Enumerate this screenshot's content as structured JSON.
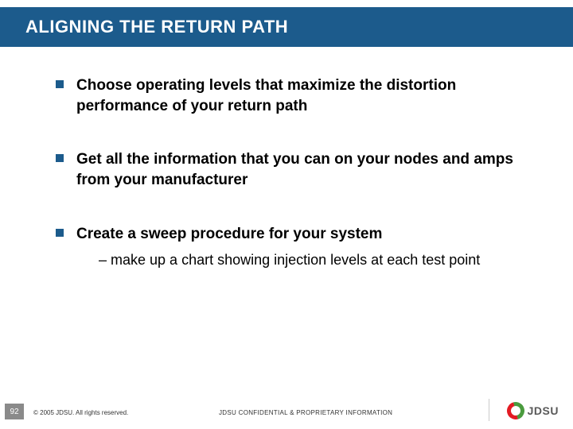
{
  "title": "ALIGNING THE RETURN PATH",
  "bullets": [
    {
      "text": "Choose operating levels that maximize the distortion performance of your return path",
      "sub": null
    },
    {
      "text": "Get all the information that you can on your nodes and amps from your manufacturer",
      "sub": null
    },
    {
      "text": "Create a sweep procedure for your system",
      "sub": "– make up a chart showing injection levels at each test point"
    }
  ],
  "footer": {
    "page": "92",
    "copyright": "© 2005 JDSU. All rights reserved.",
    "confidential": "JDSU CONFIDENTIAL & PROPRIETARY INFORMATION",
    "logo_text": "JDSU"
  },
  "colors": {
    "title_bar": "#1c5b8c",
    "bullet_mark": "#1c5b8c",
    "page_box": "#8a8a8a",
    "logo_red": "#e31b23",
    "logo_green": "#4a9b3e",
    "logo_text": "#5a5a5a",
    "background": "#ffffff"
  }
}
